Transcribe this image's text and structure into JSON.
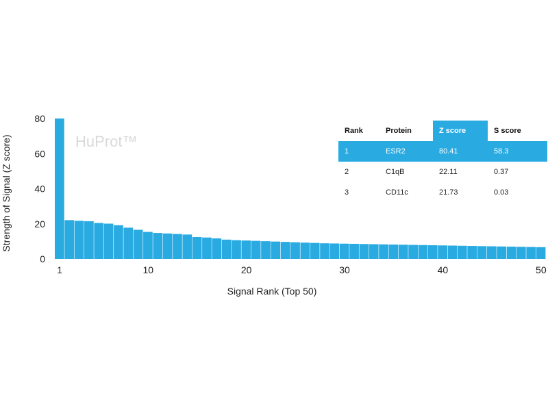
{
  "chart_data": {
    "type": "bar",
    "watermark": "HuProt™",
    "xlabel": "Signal Rank (Top 50)",
    "ylabel": "Strength of Signal (Z score)",
    "ylim": [
      0,
      80
    ],
    "yticks": [
      0,
      20,
      40,
      60,
      80
    ],
    "xticks": [
      1,
      10,
      20,
      30,
      40,
      50
    ],
    "bar_color": "#29abe2",
    "x": [
      1,
      2,
      3,
      4,
      5,
      6,
      7,
      8,
      9,
      10,
      11,
      12,
      13,
      14,
      15,
      16,
      17,
      18,
      19,
      20,
      21,
      22,
      23,
      24,
      25,
      26,
      27,
      28,
      29,
      30,
      31,
      32,
      33,
      34,
      35,
      36,
      37,
      38,
      39,
      40,
      41,
      42,
      43,
      44,
      45,
      46,
      47,
      48,
      49,
      50
    ],
    "values": [
      80.41,
      22.11,
      21.73,
      21.5,
      20.5,
      20.1,
      19.2,
      17.8,
      16.6,
      15.4,
      14.8,
      14.5,
      14.2,
      13.9,
      12.5,
      12.2,
      11.7,
      11.0,
      10.7,
      10.5,
      10.3,
      10.1,
      9.9,
      9.7,
      9.5,
      9.3,
      9.1,
      8.9,
      8.8,
      8.7,
      8.6,
      8.5,
      8.4,
      8.3,
      8.2,
      8.1,
      8.0,
      7.9,
      7.8,
      7.7,
      7.6,
      7.5,
      7.4,
      7.3,
      7.2,
      7.1,
      7.0,
      6.9,
      6.8,
      6.7
    ],
    "table": {
      "headers": [
        "Rank",
        "Protein",
        "Z score",
        "S score"
      ],
      "rows": [
        [
          "1",
          "ESR2",
          "80.41",
          "58.3"
        ],
        [
          "2",
          "C1qB",
          "22.11",
          "0.37"
        ],
        [
          "3",
          "CD11c",
          "21.73",
          "0.03"
        ]
      ]
    }
  }
}
